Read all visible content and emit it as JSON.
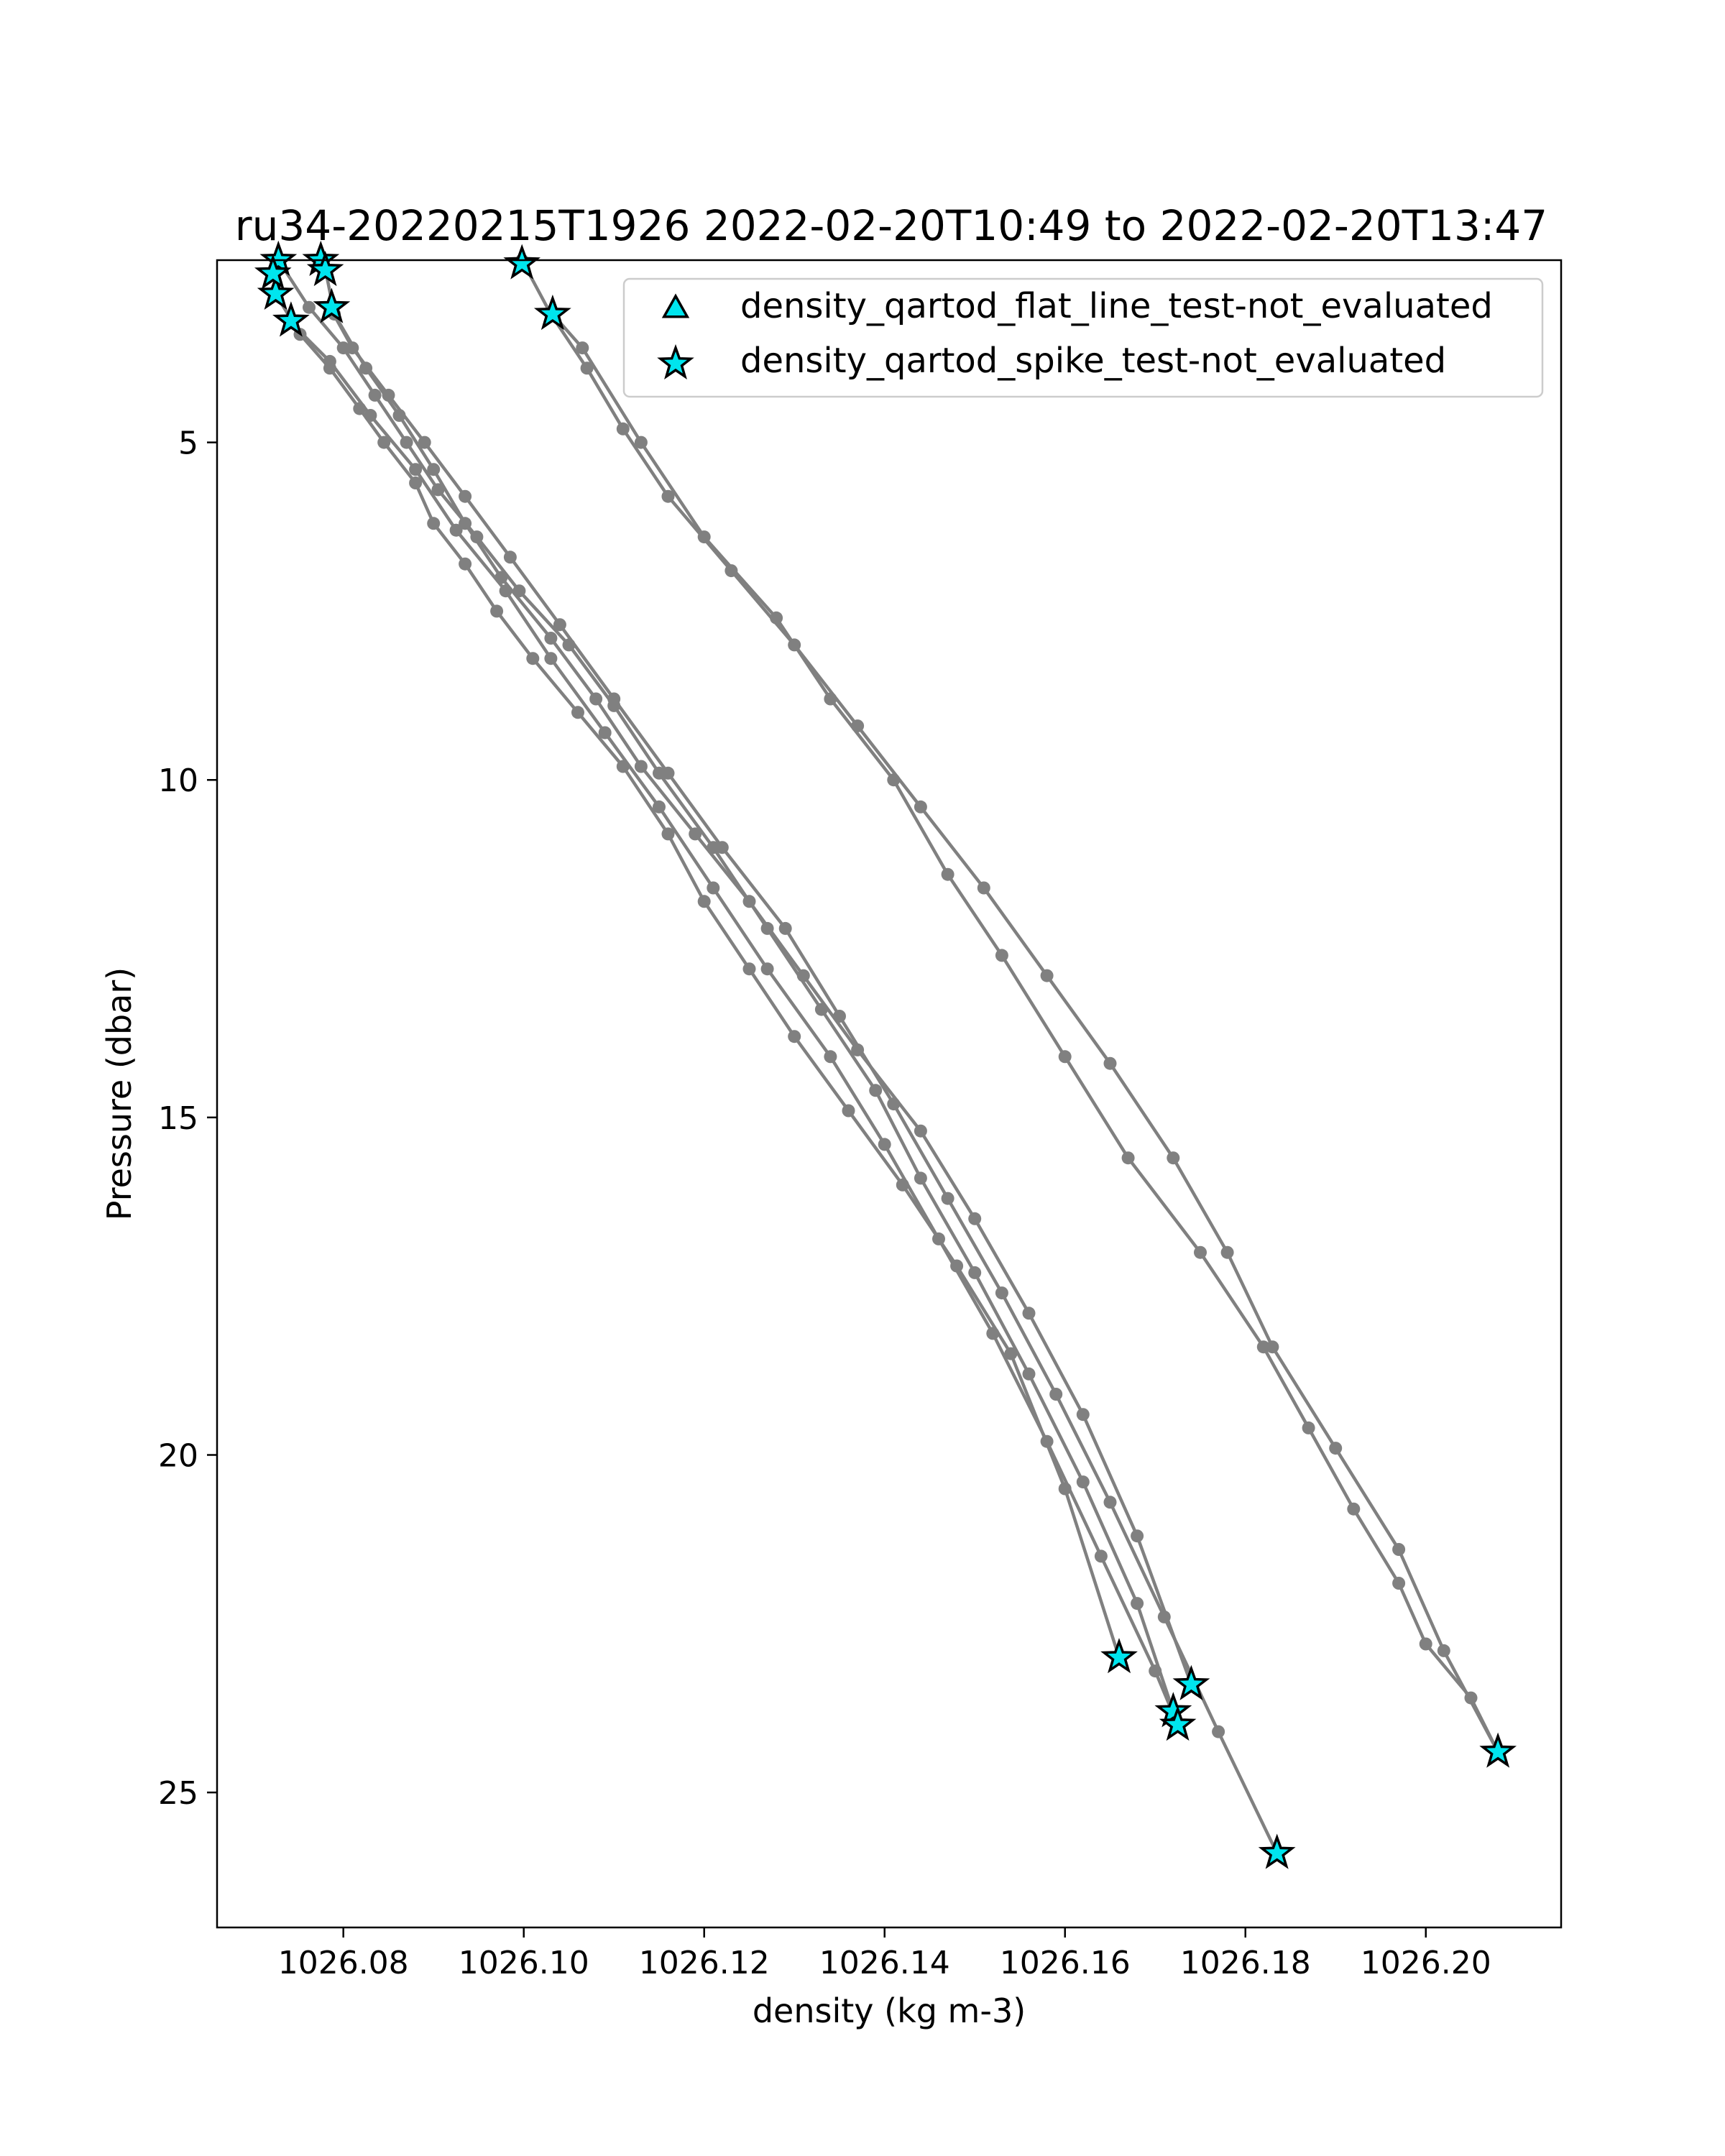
{
  "chart_data": {
    "type": "scatter",
    "title": "ru34-20220215T1926 2022-02-20T10:49 to 2022-02-20T13:47",
    "xlabel": "density (kg m-3)",
    "ylabel": "Pressure (dbar)",
    "xlim": [
      1026.066,
      1026.215
    ],
    "ylim": [
      27,
      2.3
    ],
    "y_inverted": true,
    "grid": false,
    "legend_position": "top-right",
    "xticks": [
      1026.08,
      1026.1,
      1026.12,
      1026.14,
      1026.16,
      1026.18,
      1026.2
    ],
    "xtick_labels": [
      "1026.08",
      "1026.10",
      "1026.12",
      "1026.14",
      "1026.16",
      "1026.18",
      "1026.20"
    ],
    "yticks": [
      5,
      10,
      15,
      20,
      25
    ],
    "ytick_labels": [
      "5",
      "10",
      "15",
      "20",
      "25"
    ],
    "colors": {
      "profile_line": "#808080",
      "flag_fill": "#00e5ee",
      "flag_edge": "#000000",
      "axis": "#000000"
    },
    "profiles": [
      {
        "x": [
          1026.0725,
          1026.0752,
          1026.0785,
          1026.0818,
          1026.0845,
          1026.088,
          1026.09,
          1026.0935,
          1026.097,
          1026.101,
          1026.106,
          1026.111,
          1026.116,
          1026.12,
          1026.125,
          1026.13,
          1026.136,
          1026.142,
          1026.148,
          1026.154,
          1026.16,
          1026.166
        ],
        "y": [
          2.8,
          3.4,
          3.9,
          4.5,
          5.0,
          5.6,
          6.2,
          6.8,
          7.5,
          8.2,
          9.0,
          9.8,
          10.8,
          11.8,
          12.8,
          13.8,
          14.9,
          16.0,
          17.2,
          18.5,
          20.5,
          23.0
        ]
      },
      {
        "x": [
          1026.0728,
          1026.0762,
          1026.08,
          1026.0835,
          1026.087,
          1026.0905,
          1026.0948,
          1026.0995,
          1026.105,
          1026.11,
          1026.115,
          1026.121,
          1026.127,
          1026.133,
          1026.139,
          1026.144,
          1026.15,
          1026.156,
          1026.162,
          1026.168,
          1026.172
        ],
        "y": [
          2.3,
          3.0,
          3.6,
          4.3,
          5.0,
          5.7,
          6.4,
          7.2,
          8.0,
          8.9,
          9.9,
          11.0,
          12.2,
          13.4,
          14.6,
          15.9,
          17.3,
          18.8,
          20.4,
          22.2,
          23.8
        ]
      },
      {
        "x": [
          1026.0778,
          1026.079,
          1026.0825,
          1026.0862,
          1026.09,
          1026.0935,
          1026.0975,
          1026.103,
          1026.108,
          1026.113,
          1026.119,
          1026.125,
          1026.131,
          1026.137,
          1026.144,
          1026.15,
          1026.156,
          1026.162,
          1026.168,
          1026.174
        ],
        "y": [
          2.3,
          3.1,
          3.9,
          4.6,
          5.4,
          6.2,
          7.0,
          7.9,
          8.8,
          9.8,
          10.8,
          11.8,
          12.9,
          14.0,
          15.2,
          16.5,
          17.9,
          19.4,
          21.2,
          23.4
        ]
      },
      {
        "x": [
          1026.0785,
          1026.081,
          1026.085,
          1026.089,
          1026.0935,
          1026.0985,
          1026.104,
          1026.11,
          1026.116,
          1026.122,
          1026.129,
          1026.135,
          1026.141,
          1026.147,
          1026.153,
          1026.159,
          1026.165,
          1026.171,
          1026.177,
          1026.1835
        ],
        "y": [
          3.0,
          3.6,
          4.3,
          5.0,
          5.8,
          6.7,
          7.7,
          8.8,
          9.9,
          11.0,
          12.2,
          13.5,
          14.8,
          16.2,
          17.6,
          19.1,
          20.7,
          22.4,
          24.1,
          25.9
        ]
      },
      {
        "x": [
          1026.074,
          1026.0785,
          1026.083,
          1026.088,
          1026.0925,
          1026.098,
          1026.103,
          1026.109,
          1026.115,
          1026.121,
          1026.127,
          1026.134,
          1026.14,
          1026.146,
          1026.152,
          1026.158,
          1026.164,
          1026.17,
          1026.1725
        ],
        "y": [
          3.2,
          3.8,
          4.6,
          5.4,
          6.3,
          7.2,
          8.2,
          9.3,
          10.4,
          11.6,
          12.8,
          14.1,
          15.4,
          16.8,
          18.2,
          19.8,
          21.5,
          23.2,
          24.0
        ]
      },
      {
        "x": [
          1026.0998,
          1026.103,
          1026.107,
          1026.111,
          1026.116,
          1026.123,
          1026.13,
          1026.137,
          1026.144,
          1026.151,
          1026.158,
          1026.165,
          1026.172,
          1026.178,
          1026.183,
          1026.19,
          1026.197,
          1026.202,
          1026.208
        ],
        "y": [
          2.3,
          3.1,
          3.9,
          4.8,
          5.8,
          6.9,
          8.0,
          9.2,
          10.4,
          11.6,
          12.9,
          14.2,
          15.6,
          17.0,
          18.4,
          19.9,
          21.4,
          22.9,
          24.4
        ]
      },
      {
        "x": [
          1026.1032,
          1026.1065,
          1026.113,
          1026.12,
          1026.128,
          1026.134,
          1026.141,
          1026.147,
          1026.153,
          1026.16,
          1026.167,
          1026.175,
          1026.182,
          1026.187,
          1026.192,
          1026.197,
          1026.2,
          1026.205,
          1026.208
        ],
        "y": [
          3.1,
          3.6,
          5.0,
          6.4,
          7.6,
          8.8,
          10.0,
          11.4,
          12.6,
          14.1,
          15.6,
          17.0,
          18.4,
          19.6,
          20.8,
          21.9,
          22.8,
          23.6,
          24.4
        ]
      }
    ],
    "series": [
      {
        "name": "density_qartod_flat_line_test-not_evaluated",
        "marker": "triangle",
        "x": [],
        "y": []
      },
      {
        "name": "density_qartod_spike_test-not_evaluated",
        "marker": "star",
        "x": [
          1026.0725,
          1026.0728,
          1026.0722,
          1026.0742,
          1026.0775,
          1026.078,
          1026.0787,
          1026.0998,
          1026.1032,
          1026.166,
          1026.172,
          1026.1725,
          1026.174,
          1026.1835,
          1026.208
        ],
        "y": [
          2.8,
          2.3,
          2.5,
          3.2,
          2.3,
          2.45,
          3.0,
          2.35,
          3.1,
          23.0,
          23.8,
          24.0,
          23.4,
          25.9,
          24.4
        ]
      }
    ]
  }
}
